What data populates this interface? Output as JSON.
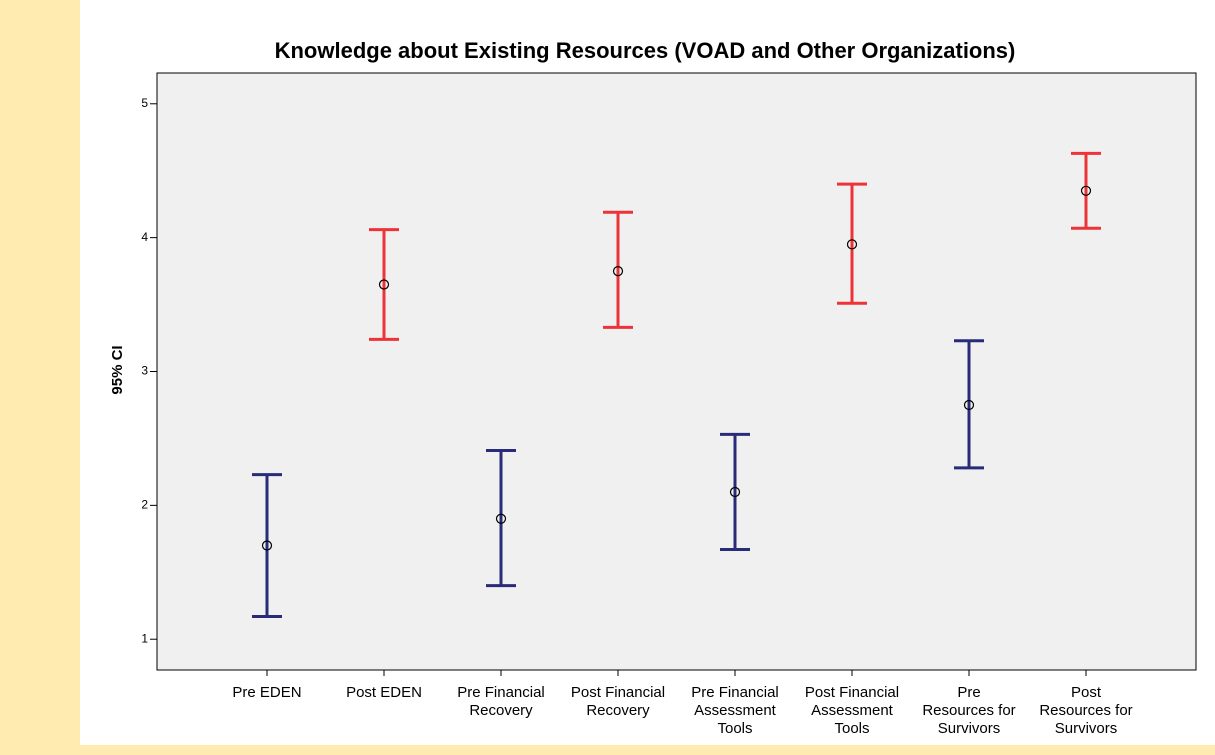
{
  "chart_data": {
    "type": "errorbar",
    "title": "Knowledge about Existing Resources (VOAD and Other Organizations)",
    "y_label": "95% CI",
    "categories": [
      [
        "Pre EDEN"
      ],
      [
        "Post EDEN"
      ],
      [
        "Pre Financial",
        "Recovery"
      ],
      [
        "Post Financial",
        "Recovery"
      ],
      [
        "Pre Financial",
        "Assessment",
        "Tools"
      ],
      [
        "Post Financial",
        "Assessment",
        "Tools"
      ],
      [
        "Pre",
        "Resources for",
        "Survivors"
      ],
      [
        "Post",
        "Resources for",
        "Survivors"
      ]
    ],
    "values": [
      1.7,
      3.65,
      1.9,
      3.75,
      2.1,
      3.95,
      2.75,
      4.35
    ],
    "lower": [
      1.17,
      3.24,
      1.4,
      3.33,
      1.67,
      3.51,
      2.28,
      4.07
    ],
    "upper": [
      2.23,
      4.06,
      2.41,
      4.19,
      2.53,
      4.4,
      3.23,
      4.63
    ],
    "colors": [
      "#2a2b78",
      "#ee3338",
      "#2a2b78",
      "#ee3338",
      "#2a2b78",
      "#ee3338",
      "#2a2b78",
      "#ee3338"
    ],
    "ylim": [
      0.77,
      5.23
    ],
    "yticks": [
      1,
      2,
      3,
      4,
      5
    ]
  }
}
